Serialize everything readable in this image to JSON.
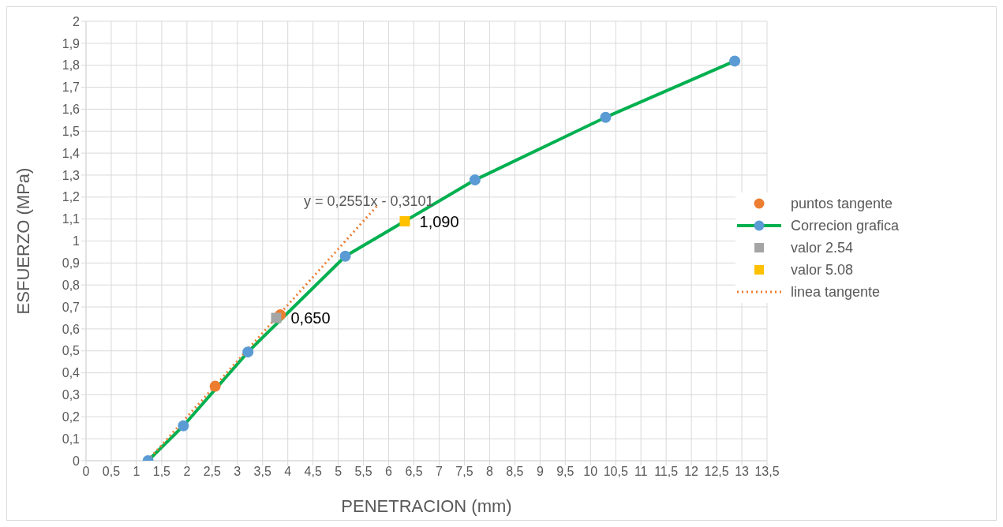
{
  "chart_data": {
    "type": "line",
    "xlabel": "PENETRACION (mm)",
    "ylabel": "ESFUERZO (MPa)",
    "xlim": [
      0,
      13.5
    ],
    "xticks": [
      0,
      {
        "value": 0.5,
        "label": "0,5"
      },
      1,
      {
        "value": 1.5,
        "label": "1,5"
      },
      2,
      {
        "value": 2.5,
        "label": "2,5"
      },
      3,
      {
        "value": 3.5,
        "label": "3,5"
      },
      4,
      {
        "value": 4.5,
        "label": "4,5"
      },
      5,
      {
        "value": 5.5,
        "label": "5,5"
      },
      6,
      {
        "value": 6.5,
        "label": "6,5"
      },
      7,
      {
        "value": 7.5,
        "label": "7,5"
      },
      8,
      {
        "value": 8.5,
        "label": "8,5"
      },
      9,
      {
        "value": 9.5,
        "label": "9,5"
      },
      10,
      {
        "value": 10.5,
        "label": "10,5"
      },
      11,
      {
        "value": 11.5,
        "label": "11,5"
      },
      12,
      {
        "value": 12.5,
        "label": "12,5"
      },
      13,
      {
        "value": 13.5,
        "label": "13,5"
      }
    ],
    "ylim": [
      0,
      2
    ],
    "yticks": [
      0,
      {
        "value": 0.1,
        "label": "0,1"
      },
      {
        "value": 0.2,
        "label": "0,2"
      },
      {
        "value": 0.3,
        "label": "0,3"
      },
      {
        "value": 0.4,
        "label": "0,4"
      },
      {
        "value": 0.5,
        "label": "0,5"
      },
      {
        "value": 0.6,
        "label": "0,6"
      },
      {
        "value": 0.7,
        "label": "0,7"
      },
      {
        "value": 0.8,
        "label": "0,8"
      },
      {
        "value": 0.9,
        "label": "0,9"
      },
      1,
      {
        "value": 1.1,
        "label": "1,1"
      },
      {
        "value": 1.2,
        "label": "1,2"
      },
      {
        "value": 1.3,
        "label": "1,3"
      },
      {
        "value": 1.4,
        "label": "1,4"
      },
      {
        "value": 1.5,
        "label": "1,5"
      },
      {
        "value": 1.6,
        "label": "1,6"
      },
      {
        "value": 1.7,
        "label": "1,7"
      },
      {
        "value": 1.8,
        "label": "1,8"
      },
      {
        "value": 1.9,
        "label": "1,9"
      },
      2
    ],
    "grid": true,
    "legend": "right",
    "annotations": [
      "y = 0,2551x - 0,3101"
    ],
    "series": [
      {
        "name": "puntos tangente",
        "type": "scatter",
        "color": "#ed7d31",
        "marker": "circle",
        "x": [
          2.56,
          3.85
        ],
        "values": [
          0.339,
          0.664
        ]
      },
      {
        "name": "Correcion grafica",
        "color": "#00b050",
        "marker": "circle",
        "colors": [
          "#5b9bd5",
          "#5b9bd5",
          "#5b9bd5",
          "#5b9bd5",
          "#5b9bd5",
          "#5b9bd5",
          "#5b9bd5"
        ],
        "x": [
          1.23,
          1.93,
          3.21,
          5.14,
          7.71,
          10.3,
          12.86
        ],
        "values": [
          0,
          0.159,
          0.495,
          0.931,
          1.278,
          1.563,
          1.819
        ]
      },
      {
        "name": "valor 2.54",
        "type": "scatter",
        "color": "#a5a5a5",
        "marker": "square",
        "x": [
          3.77
        ],
        "values": [
          0.65
        ],
        "value_labels": [
          "0,650"
        ]
      },
      {
        "name": "valor 5.08",
        "type": "scatter",
        "color": "#ffc000",
        "marker": "square",
        "x": [
          6.32
        ],
        "values": [
          1.09
        ],
        "value_labels": [
          "1,090"
        ]
      },
      {
        "name": "linea tangente",
        "color": "#ed7d31",
        "line_style": "dotted",
        "marker": "none",
        "x": [
          1.22,
          5.77
        ],
        "values": [
          0,
          1.16
        ]
      }
    ]
  }
}
